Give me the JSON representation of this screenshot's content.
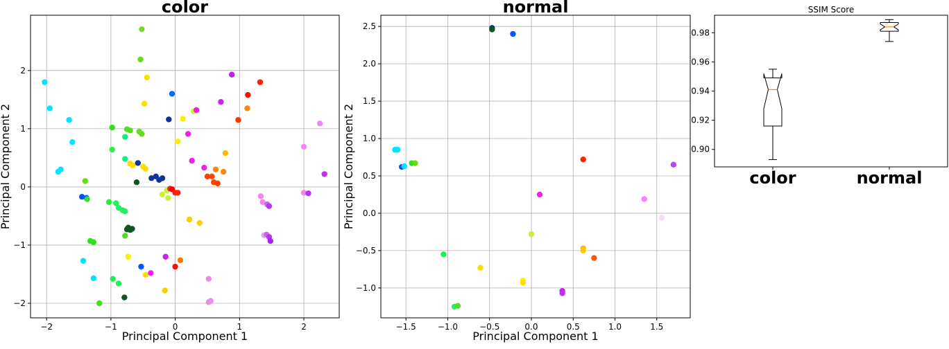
{
  "chart_data": [
    {
      "type": "scatter",
      "title": "color",
      "xlabel": "Principal Component 1",
      "ylabel": "Principal Component 2",
      "xlim": [
        -2.25,
        2.55
      ],
      "ylim": [
        -2.25,
        2.95
      ],
      "xticks": [
        -2,
        -1,
        0,
        1,
        2
      ],
      "yticks": [
        -2,
        -1,
        0,
        1,
        2
      ],
      "xtick_labels": [
        "−2",
        "−1",
        "0",
        "1",
        "2"
      ],
      "ytick_labels": [
        "−2",
        "−1",
        "0",
        "1",
        "2"
      ],
      "grid": true,
      "points": [
        {
          "x": -2.03,
          "y": 1.8,
          "color": "#00e5ff"
        },
        {
          "x": -1.95,
          "y": 1.35,
          "color": "#00e5ff"
        },
        {
          "x": -1.65,
          "y": 1.15,
          "color": "#00e5ff"
        },
        {
          "x": -1.6,
          "y": 0.77,
          "color": "#00e5ff"
        },
        {
          "x": -1.78,
          "y": 0.3,
          "color": "#00e5ff"
        },
        {
          "x": -1.82,
          "y": 0.26,
          "color": "#00e5ff"
        },
        {
          "x": -1.43,
          "y": -1.27,
          "color": "#00e5ff"
        },
        {
          "x": -1.27,
          "y": -1.57,
          "color": "#00e5ff"
        },
        {
          "x": -1.45,
          "y": -0.17,
          "color": "#0055ff"
        },
        {
          "x": -1.38,
          "y": -0.19,
          "color": "#0055ff"
        },
        {
          "x": -1.4,
          "y": 0.1,
          "color": "#66dd11"
        },
        {
          "x": -1.37,
          "y": -0.21,
          "color": "#33dd33"
        },
        {
          "x": -1.32,
          "y": -0.93,
          "color": "#33dd22"
        },
        {
          "x": -1.27,
          "y": -0.95,
          "color": "#33dd22"
        },
        {
          "x": -1.18,
          "y": -2.0,
          "color": "#44dd22"
        },
        {
          "x": -1.03,
          "y": -0.26,
          "color": "#22ee33"
        },
        {
          "x": -0.98,
          "y": 1.02,
          "color": "#33dd22"
        },
        {
          "x": -0.98,
          "y": 0.64,
          "color": "#33ee44"
        },
        {
          "x": -0.97,
          "y": -1.58,
          "color": "#22ee55"
        },
        {
          "x": -0.92,
          "y": -0.28,
          "color": "#22ee55"
        },
        {
          "x": -0.88,
          "y": -1.66,
          "color": "#22ee55"
        },
        {
          "x": -0.88,
          "y": -0.36,
          "color": "#22ee66"
        },
        {
          "x": -0.82,
          "y": -0.4,
          "color": "#22ee66"
        },
        {
          "x": -0.78,
          "y": -0.42,
          "color": "#22ee66"
        },
        {
          "x": -0.78,
          "y": 0.86,
          "color": "#11ee77"
        },
        {
          "x": -0.78,
          "y": 0.48,
          "color": "#11ee88"
        },
        {
          "x": -0.78,
          "y": -0.84,
          "color": "#55dd22"
        },
        {
          "x": -0.79,
          "y": -1.9,
          "color": "#115522"
        },
        {
          "x": -0.75,
          "y": -0.73,
          "color": "#115522"
        },
        {
          "x": -0.73,
          "y": -0.7,
          "color": "#115522"
        },
        {
          "x": -0.7,
          "y": -0.74,
          "color": "#115522"
        },
        {
          "x": -0.67,
          "y": -0.72,
          "color": "#115522"
        },
        {
          "x": -0.75,
          "y": 0.99,
          "color": "#55dd22"
        },
        {
          "x": -0.7,
          "y": 0.97,
          "color": "#55dd22"
        },
        {
          "x": -0.73,
          "y": -1.2,
          "color": "#ffee00"
        },
        {
          "x": -0.7,
          "y": 0.4,
          "color": "#ffdd00"
        },
        {
          "x": -0.66,
          "y": 0.37,
          "color": "#ffdd00"
        },
        {
          "x": -0.6,
          "y": 0.08,
          "color": "#115522"
        },
        {
          "x": -0.58,
          "y": 0.41,
          "color": "#113399"
        },
        {
          "x": -0.56,
          "y": 0.95,
          "color": "#66dd22"
        },
        {
          "x": -0.52,
          "y": 0.91,
          "color": "#66dd22"
        },
        {
          "x": -0.54,
          "y": 2.19,
          "color": "#66dd22"
        },
        {
          "x": -0.52,
          "y": 2.71,
          "color": "#77dd22"
        },
        {
          "x": -0.53,
          "y": -1.37,
          "color": "#0055ff"
        },
        {
          "x": -0.5,
          "y": 0.35,
          "color": "#ffdd00"
        },
        {
          "x": -0.46,
          "y": 0.31,
          "color": "#ffdd00"
        },
        {
          "x": -0.48,
          "y": 1.43,
          "color": "#ffdd00"
        },
        {
          "x": -0.44,
          "y": 1.88,
          "color": "#ffdd00"
        },
        {
          "x": -0.46,
          "y": -1.51,
          "color": "#ffdd00"
        },
        {
          "x": -0.38,
          "y": -1.48,
          "color": "#ee22ee"
        },
        {
          "x": -0.37,
          "y": 0.15,
          "color": "#113399"
        },
        {
          "x": -0.3,
          "y": 0.18,
          "color": "#113399"
        },
        {
          "x": -0.25,
          "y": 0.12,
          "color": "#113399"
        },
        {
          "x": -0.2,
          "y": 0.15,
          "color": "#113399"
        },
        {
          "x": -0.2,
          "y": -0.13,
          "color": "#ccee33"
        },
        {
          "x": -0.16,
          "y": -1.78,
          "color": "#ffcc00"
        },
        {
          "x": -0.15,
          "y": -1.2,
          "color": "#cc22ee"
        },
        {
          "x": -0.13,
          "y": -0.06,
          "color": "#ccee33"
        },
        {
          "x": -0.11,
          "y": -0.19,
          "color": "#ccee33"
        },
        {
          "x": -0.1,
          "y": 1.16,
          "color": "#113399"
        },
        {
          "x": -0.08,
          "y": -0.03,
          "color": "#ff2222"
        },
        {
          "x": -0.05,
          "y": -0.04,
          "color": "#ff0000"
        },
        {
          "x": -0.05,
          "y": 1.6,
          "color": "#0066ff"
        },
        {
          "x": 0.0,
          "y": -0.1,
          "color": "#ff2200"
        },
        {
          "x": 0.0,
          "y": -1.37,
          "color": "#ff1100"
        },
        {
          "x": 0.04,
          "y": -0.1,
          "color": "#ff2200"
        },
        {
          "x": 0.04,
          "y": 0.78,
          "color": "#ffee00"
        },
        {
          "x": 0.08,
          "y": -1.26,
          "color": "#ff7700"
        },
        {
          "x": 0.12,
          "y": 1.17,
          "color": "#ffee00"
        },
        {
          "x": 0.2,
          "y": 0.91,
          "color": "#ee22ee"
        },
        {
          "x": 0.22,
          "y": -0.56,
          "color": "#ffcc00"
        },
        {
          "x": 0.26,
          "y": 0.45,
          "color": "#ee22ee"
        },
        {
          "x": 0.29,
          "y": 1.3,
          "color": "#ccee33"
        },
        {
          "x": 0.33,
          "y": 1.32,
          "color": "#ee22dd"
        },
        {
          "x": 0.38,
          "y": -0.62,
          "color": "#ffcc00"
        },
        {
          "x": 0.45,
          "y": 0.33,
          "color": "#ee22ee"
        },
        {
          "x": 0.5,
          "y": 0.18,
          "color": "#ff4400"
        },
        {
          "x": 0.52,
          "y": -1.58,
          "color": "#ee88ee"
        },
        {
          "x": 0.52,
          "y": -1.98,
          "color": "#ee88ee"
        },
        {
          "x": 0.55,
          "y": -1.96,
          "color": "#ee88ee"
        },
        {
          "x": 0.57,
          "y": 0.18,
          "color": "#ff4400"
        },
        {
          "x": 0.6,
          "y": 0.08,
          "color": "#ff4400"
        },
        {
          "x": 0.63,
          "y": 0.3,
          "color": "#ff8800"
        },
        {
          "x": 0.66,
          "y": 0.06,
          "color": "#ff4400"
        },
        {
          "x": 0.71,
          "y": 1.46,
          "color": "#cc22ee"
        },
        {
          "x": 0.75,
          "y": 0.26,
          "color": "#ff8800"
        },
        {
          "x": 0.78,
          "y": 0.58,
          "color": "#ffbb00"
        },
        {
          "x": 0.88,
          "y": 1.93,
          "color": "#bb22ee"
        },
        {
          "x": 0.98,
          "y": 1.15,
          "color": "#ff3300"
        },
        {
          "x": 1.12,
          "y": 1.35,
          "color": "#ff8800"
        },
        {
          "x": 1.13,
          "y": 1.58,
          "color": "#ff1100"
        },
        {
          "x": 1.32,
          "y": 1.8,
          "color": "#ff2200"
        },
        {
          "x": 1.33,
          "y": -0.16,
          "color": "#ee88ee"
        },
        {
          "x": 1.36,
          "y": -0.26,
          "color": "#ee88ee"
        },
        {
          "x": 1.43,
          "y": -0.3,
          "color": "#cc66ee"
        },
        {
          "x": 1.46,
          "y": -0.33,
          "color": "#bb33ee"
        },
        {
          "x": 1.38,
          "y": -0.83,
          "color": "#ddaaee"
        },
        {
          "x": 1.42,
          "y": -0.82,
          "color": "#cc66ee"
        },
        {
          "x": 1.46,
          "y": -0.86,
          "color": "#bb33ee"
        },
        {
          "x": 1.48,
          "y": -0.93,
          "color": "#aa22ee"
        },
        {
          "x": 2.0,
          "y": 0.69,
          "color": "#ee88ee"
        },
        {
          "x": 2.0,
          "y": -0.1,
          "color": "#ee88ee"
        },
        {
          "x": 2.07,
          "y": -0.11,
          "color": "#bb33ee"
        },
        {
          "x": 2.25,
          "y": 1.09,
          "color": "#ee88ee"
        },
        {
          "x": 2.32,
          "y": 0.22,
          "color": "#bb33ee"
        }
      ]
    },
    {
      "type": "scatter",
      "title": "normal",
      "xlabel": "Principal Component 1",
      "ylabel": "Principal Component 2",
      "xlim": [
        -1.8,
        1.9
      ],
      "ylim": [
        -1.4,
        2.65
      ],
      "xticks": [
        -1.5,
        -1.0,
        -0.5,
        0.0,
        0.5,
        1.0,
        1.5
      ],
      "yticks": [
        -1.0,
        -0.5,
        0.0,
        0.5,
        1.0,
        1.5,
        2.0,
        2.5
      ],
      "xtick_labels": [
        "−1.5",
        "−1.0",
        "−0.5",
        "0.0",
        "0.5",
        "1.0",
        "1.5"
      ],
      "ytick_labels": [
        "−1.0",
        "−0.5",
        "0.0",
        "0.5",
        "1.0",
        "1.5",
        "2.0",
        "2.5"
      ],
      "grid": true,
      "points": [
        {
          "x": -0.47,
          "y": 2.48,
          "color": "#113399"
        },
        {
          "x": -0.47,
          "y": 2.46,
          "color": "#115522"
        },
        {
          "x": -0.22,
          "y": 2.4,
          "color": "#0055ff"
        },
        {
          "x": -1.63,
          "y": 0.85,
          "color": "#00e5ff"
        },
        {
          "x": -1.6,
          "y": 0.85,
          "color": "#00e5ff"
        },
        {
          "x": -1.55,
          "y": 0.62,
          "color": "#0055ff"
        },
        {
          "x": -1.52,
          "y": 0.63,
          "color": "#00e5ff"
        },
        {
          "x": -1.43,
          "y": 0.67,
          "color": "#33dd22"
        },
        {
          "x": -1.39,
          "y": 0.67,
          "color": "#66dd11"
        },
        {
          "x": -1.05,
          "y": -0.55,
          "color": "#22ee55"
        },
        {
          "x": -0.92,
          "y": -1.25,
          "color": "#22ee66"
        },
        {
          "x": -0.88,
          "y": -1.24,
          "color": "#55dd22"
        },
        {
          "x": -0.61,
          "y": -0.73,
          "color": "#ffdd00"
        },
        {
          "x": -0.1,
          "y": -0.9,
          "color": "#ffee00"
        },
        {
          "x": -0.1,
          "y": -0.93,
          "color": "#ffdd00"
        },
        {
          "x": 0.0,
          "y": -0.28,
          "color": "#ccee33"
        },
        {
          "x": 0.1,
          "y": 0.25,
          "color": "#ee22ee"
        },
        {
          "x": 0.37,
          "y": -1.04,
          "color": "#cc22ee"
        },
        {
          "x": 0.37,
          "y": -1.07,
          "color": "#bb33ee"
        },
        {
          "x": 0.62,
          "y": 0.72,
          "color": "#ff2200"
        },
        {
          "x": 0.62,
          "y": -0.47,
          "color": "#ffbb00"
        },
        {
          "x": 0.62,
          "y": -0.5,
          "color": "#ffcc00"
        },
        {
          "x": 0.75,
          "y": -0.6,
          "color": "#ff5500"
        },
        {
          "x": 1.35,
          "y": 0.19,
          "color": "#ee88ee"
        },
        {
          "x": 1.56,
          "y": -0.06,
          "color": "#f7d8f7"
        },
        {
          "x": 1.7,
          "y": 0.65,
          "color": "#bb44ee"
        }
      ]
    },
    {
      "type": "box",
      "title": "SSIM Score",
      "categories": [
        "color",
        "normal"
      ],
      "ylim": [
        0.888,
        0.992
      ],
      "yticks": [
        0.9,
        0.92,
        0.94,
        0.96,
        0.98
      ],
      "ytick_labels": [
        "0.90",
        "0.92",
        "0.94",
        "0.96",
        "0.98"
      ],
      "boxes": [
        {
          "whislo": 0.893,
          "q1": 0.916,
          "med": 0.941,
          "q3": 0.949,
          "whishi": 0.955,
          "notch_lo": 0.928,
          "notch_hi": 0.952
        },
        {
          "whislo": 0.974,
          "q1": 0.981,
          "med": 0.984,
          "q3": 0.987,
          "whishi": 0.989,
          "notch_lo": 0.982,
          "notch_hi": 0.986
        }
      ],
      "median_color": "#ff8800"
    }
  ]
}
